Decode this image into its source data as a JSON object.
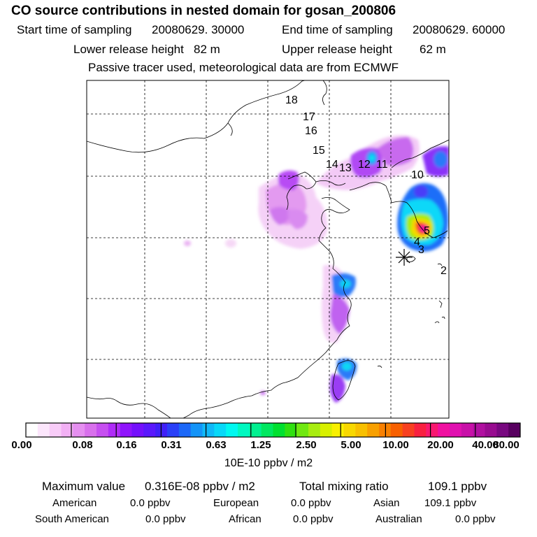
{
  "header": {
    "title": "CO  source contributions in nested domain for gosan_200806",
    "start_label": "Start time of sampling",
    "start_value": "20080629. 30000",
    "end_label": "End time of sampling",
    "end_value": "20080629. 60000",
    "lower_label": "Lower release height",
    "lower_value": "82 m",
    "upper_label": "Upper release height",
    "upper_value": "62 m",
    "note": "Passive tracer used, meteorological data are from ECMWF"
  },
  "map": {
    "trajectory_labels": [
      "18",
      "17",
      "16",
      "15",
      "14",
      "13",
      "12",
      "11",
      "10",
      "5",
      "4",
      "3",
      "2"
    ],
    "receptor_marker": "asterisk-receptor-icon"
  },
  "colorbar": {
    "tick_labels": [
      "0.00",
      "0.08",
      "0.16",
      "0.31",
      "0.63",
      "1.25",
      "2.50",
      "5.00",
      "10.00",
      "20.00",
      "40.00",
      "80.00"
    ],
    "units": "10E-10 ppbv / m2",
    "colors": [
      "#ffffff",
      "#fce6fc",
      "#f8ccf8",
      "#f2b0f4",
      "#e58ff0",
      "#d870ec",
      "#c64ff0",
      "#b02cf8",
      "#8f14fc",
      "#7410fc",
      "#5a18fc",
      "#4020f8",
      "#2a40f8",
      "#1c68f8",
      "#1494f8",
      "#10b8f8",
      "#08d8f8",
      "#00f8f0",
      "#00f8c0",
      "#00f090",
      "#00e860",
      "#00e030",
      "#30e010",
      "#70e810",
      "#a8ec10",
      "#d8f000",
      "#f8f000",
      "#f8d800",
      "#f8c000",
      "#f8a000",
      "#f88000",
      "#f86000",
      "#f84020",
      "#f82040",
      "#f81870",
      "#f010a0",
      "#e010b0",
      "#c810a8",
      "#b010a0",
      "#980c90",
      "#780880",
      "#580060"
    ]
  },
  "summary": {
    "max_label": "Maximum value",
    "max_value": "0.316E-08 ppbv / m2",
    "total_label": "Total mixing ratio",
    "total_value": "109.1 ppbv",
    "regions": [
      {
        "name": "American",
        "value": "0.0 ppbv"
      },
      {
        "name": "European",
        "value": "0.0 ppbv"
      },
      {
        "name": "Asian",
        "value": "109.1 ppbv"
      },
      {
        "name": "South American",
        "value": "0.0 ppbv"
      },
      {
        "name": "African",
        "value": "0.0 ppbv"
      },
      {
        "name": "Australian",
        "value": "0.0 ppbv"
      }
    ]
  }
}
